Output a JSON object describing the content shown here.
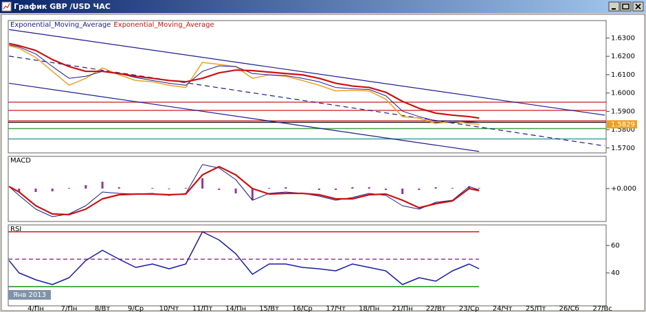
{
  "window_title": "График GBP /USD ЧАС",
  "chart_data": [
    {
      "type": "line",
      "x": [
        -0.8,
        -0.5,
        0,
        0.5,
        1,
        1.5,
        2,
        2.5,
        3,
        3.5,
        4,
        4.5,
        5,
        5.5,
        6,
        6.5,
        7,
        7.5,
        8,
        8.5,
        9,
        9.5,
        10,
        10.5,
        11,
        11.5,
        12,
        12.5,
        13,
        13.3
      ],
      "xlim": [
        -0.825,
        17.11
      ],
      "ylim": [
        1.5673,
        1.6395
      ],
      "yticks": [
        {
          "value": 1.57,
          "label": "1.5700"
        },
        {
          "value": 1.58,
          "label": "1.5800"
        },
        {
          "value": 1.59,
          "label": "1.5900"
        },
        {
          "value": 1.6,
          "label": "1.6000"
        },
        {
          "value": 1.61,
          "label": "1.6100"
        },
        {
          "value": 1.62,
          "label": "1.6200"
        },
        {
          "value": 1.63,
          "label": "1.6300"
        }
      ],
      "series": [
        {
          "color": "#f0a020",
          "width": 1.5,
          "values": [
            1.6258,
            1.6243,
            1.6194,
            1.6118,
            1.6042,
            1.608,
            1.6137,
            1.6099,
            1.6068,
            1.6061,
            1.6042,
            1.603,
            1.6167,
            1.6156,
            1.6144,
            1.608,
            1.6099,
            1.6091,
            1.6068,
            1.6042,
            1.6011,
            1.6015,
            1.6011,
            1.5966,
            1.5871,
            1.5863,
            1.5833,
            1.5848,
            1.5833,
            1.5829
          ]
        },
        {
          "name": "Exponential_Moving_Average",
          "color": "#1a1a8c",
          "width": 1,
          "values": [
            1.6262,
            1.6251,
            1.6213,
            1.6144,
            1.608,
            1.6091,
            1.6118,
            1.6106,
            1.6084,
            1.6068,
            1.6053,
            1.6042,
            1.6118,
            1.6148,
            1.6144,
            1.6106,
            1.6099,
            1.6095,
            1.608,
            1.6061,
            1.603,
            1.6023,
            1.6019,
            1.5985,
            1.5901,
            1.5871,
            1.5848,
            1.5848,
            1.5844,
            1.5841
          ]
        },
        {
          "name": "Exponential_Moving_Average",
          "color": "#cc1010",
          "width": 2.2,
          "values": [
            1.627,
            1.6258,
            1.6232,
            1.6182,
            1.6144,
            1.6118,
            1.6118,
            1.6106,
            1.6091,
            1.608,
            1.6068,
            1.6061,
            1.608,
            1.611,
            1.6125,
            1.6122,
            1.6114,
            1.6106,
            1.6099,
            1.608,
            1.6053,
            1.6038,
            1.603,
            1.6004,
            1.5954,
            1.5916,
            1.589,
            1.5879,
            1.5871,
            1.5863
          ]
        }
      ],
      "last_value_label": true,
      "last_value_color": "#f0a020",
      "levels": [
        {
          "value": 1.595,
          "color": "#d04040"
        },
        {
          "value": 1.5905,
          "color": "#d04040"
        },
        {
          "value": 1.5848,
          "color": "#d04040"
        },
        {
          "value": 1.584,
          "color": "#202020"
        },
        {
          "value": 1.5806,
          "color": "#40a040"
        },
        {
          "value": 1.5749,
          "color": "#40a0a0"
        }
      ],
      "trendlines": [
        {
          "x": [
            -0.8,
            17.07
          ],
          "y": [
            1.6346,
            1.5879
          ],
          "color": "#1a1a8c",
          "dashed": false
        },
        {
          "x": [
            -0.8,
            13.3
          ],
          "y": [
            1.6053,
            1.5681
          ],
          "color": "#1a1a8c",
          "dashed": false
        },
        {
          "x": [
            -0.8,
            17.07
          ],
          "y": [
            1.6201,
            1.5711
          ],
          "color": "#1a1a8c",
          "dashed": true
        }
      ]
    },
    {
      "type": "line",
      "title": "MACD",
      "x": [
        -0.8,
        -0.5,
        0,
        0.5,
        1,
        1.5,
        2,
        2.5,
        3,
        3.5,
        4,
        4.5,
        5,
        5.5,
        6,
        6.5,
        7,
        7.5,
        8,
        8.5,
        9,
        9.5,
        10,
        10.5,
        11,
        11.5,
        12,
        12.5,
        13,
        13.3
      ],
      "xlim": [
        -0.825,
        17.11
      ],
      "ylim": [
        -0.0048,
        0.0047
      ],
      "yticks": [
        {
          "value": 0,
          "label": "+0.000"
        }
      ],
      "series": [
        {
          "color": "#993399",
          "style": "bar",
          "values": [
            0,
            -0.0005,
            -0.0005,
            -0.0004,
            0.0001,
            0.0005,
            0.001,
            0.0002,
            0,
            0.0001,
            -0.0001,
            0.0001,
            0.0015,
            -0.0002,
            -0.0007,
            -0.0017,
            0.0001,
            0.0002,
            0,
            -0.0002,
            -0.0002,
            0.0002,
            0.0002,
            -0.0002,
            -0.0008,
            -0.0002,
            0.0002,
            0.0001,
            0.0003,
            0.0001
          ]
        },
        {
          "color": "#1a1a8c",
          "width": 1,
          "values": [
            0.0003,
            -0.001,
            -0.003,
            -0.0041,
            -0.0037,
            -0.0025,
            -0.0005,
            -0.0007,
            -0.0008,
            -0.0007,
            -0.001,
            -0.0007,
            0.0035,
            0.003,
            0.0013,
            -0.0017,
            -0.0007,
            -0.0005,
            -0.0007,
            -0.0011,
            -0.0017,
            -0.0013,
            -0.0007,
            -0.001,
            -0.0025,
            -0.003,
            -0.002,
            -0.0017,
            0.0003,
            -0.0002
          ]
        },
        {
          "color": "#cc1010",
          "width": 2.2,
          "values": [
            0.0003,
            -0.0005,
            -0.0025,
            -0.0037,
            -0.0038,
            -0.003,
            -0.0015,
            -0.0009,
            -0.0008,
            -0.0008,
            -0.0009,
            -0.0008,
            0.002,
            0.0032,
            0.002,
            0,
            -0.0008,
            -0.0007,
            -0.0007,
            -0.0009,
            -0.0015,
            -0.0015,
            -0.0009,
            -0.0008,
            -0.0017,
            -0.0028,
            -0.0022,
            -0.0018,
            0,
            -0.0003
          ]
        }
      ]
    },
    {
      "type": "line",
      "title": "RSI",
      "x": [
        -0.8,
        -0.5,
        0,
        0.5,
        1,
        1.5,
        2,
        2.5,
        3,
        3.5,
        4,
        4.5,
        5,
        5.5,
        6,
        6.5,
        7,
        7.5,
        8,
        8.5,
        9,
        9.5,
        10,
        10.5,
        11,
        11.5,
        12,
        12.5,
        13,
        13.3
      ],
      "xlim": [
        -0.825,
        17.11
      ],
      "xticks": [
        {
          "value": 0,
          "label": "4/Пн"
        },
        {
          "value": 1,
          "label": "7/Пн"
        },
        {
          "value": 2,
          "label": "8/Вт"
        },
        {
          "value": 3,
          "label": "9/Ср"
        },
        {
          "value": 4,
          "label": "10/Чт"
        },
        {
          "value": 5,
          "label": "11/Пт"
        },
        {
          "value": 6,
          "label": "14/Пн"
        },
        {
          "value": 7,
          "label": "15/Вт"
        },
        {
          "value": 8,
          "label": "16/Ср"
        },
        {
          "value": 9,
          "label": "17/Чт"
        },
        {
          "value": 10,
          "label": "18/Пн"
        },
        {
          "value": 11,
          "label": "21/Пн"
        },
        {
          "value": 12,
          "label": "22/Вт"
        },
        {
          "value": 13,
          "label": "23/Ср"
        },
        {
          "value": 14,
          "label": "24/Чт"
        },
        {
          "value": 15,
          "label": "25/Пт"
        },
        {
          "value": 16,
          "label": "26/Сб"
        },
        {
          "value": 17,
          "label": "27/Вс"
        }
      ],
      "xlabel": "Янв 2013",
      "ylim": [
        16,
        75
      ],
      "yticks": [
        40,
        60
      ],
      "series": [
        {
          "color": "#1a1aa0",
          "width": 1.5,
          "values": [
            49,
            40,
            35,
            31.5,
            36.5,
            49,
            56.5,
            50,
            44,
            46.5,
            43,
            46.5,
            70,
            64,
            54,
            39,
            46.5,
            46.5,
            44,
            43,
            41.5,
            46.5,
            44,
            41.5,
            31.5,
            36.5,
            34,
            41.5,
            46.5,
            43
          ]
        }
      ],
      "levels_to_last_point": true,
      "levels": [
        {
          "value": 70,
          "color": "#dd1010"
        },
        {
          "value": 50,
          "color": "#993399",
          "dashed": true
        },
        {
          "value": 30,
          "color": "#109010"
        }
      ]
    }
  ]
}
